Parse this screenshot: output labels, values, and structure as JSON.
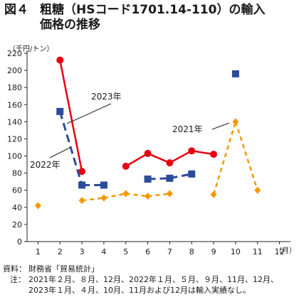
{
  "figure": {
    "number": "図４",
    "title_line1": "粗糖（HSコード1701.14-110）の輸入",
    "title_line2": "価格の推移"
  },
  "axis_units": {
    "y": "（千円/トン）",
    "x": "（月）"
  },
  "source": {
    "label1": "資料：",
    "text1": "財務省「貿易統計」",
    "label2": "注：",
    "text2": "2021年２月、８月、12月、2022年１月、５月、９月、11月、12月、2023年１月、４月、10月、11月および12月は輸入実績なし。"
  },
  "chart_data": {
    "type": "line",
    "x": [
      1,
      2,
      3,
      4,
      5,
      6,
      7,
      8,
      9,
      10,
      11,
      12
    ],
    "xlim": [
      0.5,
      12.5
    ],
    "ylim": [
      0,
      220
    ],
    "y_ticks": [
      0,
      20,
      40,
      60,
      80,
      100,
      120,
      140,
      160,
      180,
      200,
      220
    ],
    "grid": false,
    "series": [
      {
        "name": "2021年",
        "color": "#f39800",
        "style": "dashed",
        "marker": "diamond",
        "values": [
          42,
          null,
          48,
          51,
          56,
          53,
          56,
          null,
          55,
          140,
          60,
          null
        ],
        "label_text": "2021年"
      },
      {
        "name": "2022年",
        "color": "#2b4c9b",
        "style": "dashed-long",
        "marker": "square",
        "values": [
          null,
          152,
          66,
          66,
          null,
          73,
          74,
          79,
          null,
          196,
          null,
          null
        ],
        "label_text": "2022年"
      },
      {
        "name": "2023年",
        "color": "#e60012",
        "style": "solid",
        "marker": "circle",
        "values": [
          null,
          212,
          82,
          null,
          88,
          103,
          92,
          106,
          102,
          null,
          null,
          null
        ],
        "label_text": "2023年"
      }
    ]
  }
}
